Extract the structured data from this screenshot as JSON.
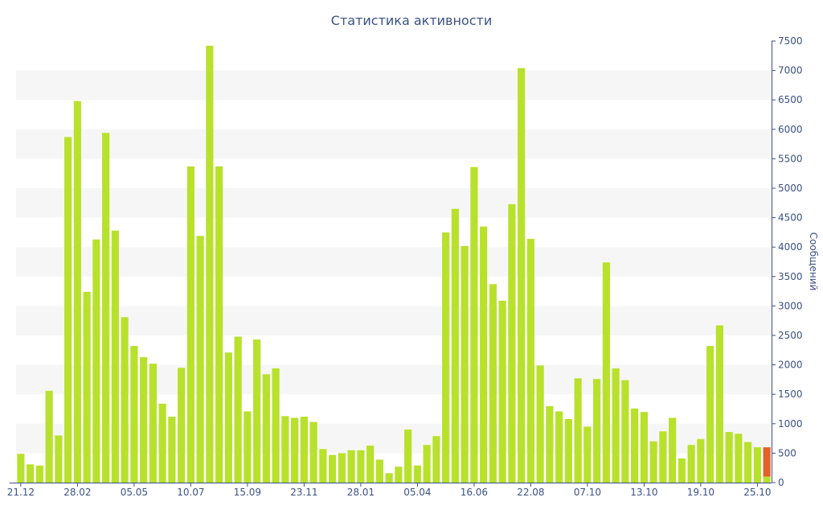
{
  "chart_data": {
    "type": "bar",
    "title": "Статистика активности",
    "xlabel": "",
    "ylabel": "Сообщений",
    "ylim": [
      0,
      7500
    ],
    "y_ticks": [
      0,
      500,
      1000,
      1500,
      2000,
      2500,
      3000,
      3500,
      4000,
      4500,
      5000,
      5500,
      6000,
      6500,
      7000,
      7500
    ],
    "y_axis_position": "right",
    "grid": "alternating horizontal bands",
    "x_tick_labels": [
      {
        "index": 0,
        "label": "21.12"
      },
      {
        "index": 6,
        "label": "28.02"
      },
      {
        "index": 12,
        "label": "05.05"
      },
      {
        "index": 18,
        "label": "10.07"
      },
      {
        "index": 24,
        "label": "15.09"
      },
      {
        "index": 30,
        "label": "23.11"
      },
      {
        "index": 36,
        "label": "28.01"
      },
      {
        "index": 42,
        "label": "05.04"
      },
      {
        "index": 48,
        "label": "16.06"
      },
      {
        "index": 54,
        "label": "22.08"
      },
      {
        "index": 60,
        "label": "07.10"
      },
      {
        "index": 66,
        "label": "13.10"
      },
      {
        "index": 72,
        "label": "19.10"
      },
      {
        "index": 78,
        "label": "25.10"
      }
    ],
    "values": [
      490,
      310,
      290,
      1560,
      800,
      5870,
      6480,
      3240,
      4130,
      5940,
      4280,
      2810,
      2320,
      2130,
      2020,
      1340,
      1120,
      1950,
      5370,
      4190,
      7420,
      5370,
      2210,
      2480,
      1210,
      2430,
      1840,
      1940,
      1130,
      1100,
      1120,
      1030,
      570,
      470,
      500,
      550,
      550,
      630,
      390,
      160,
      270,
      900,
      290,
      640,
      790,
      4250,
      4650,
      4020,
      5360,
      4350,
      3370,
      3090,
      4730,
      7040,
      4140,
      1990,
      1300,
      1210,
      1080,
      1770,
      950,
      1760,
      3740,
      1940,
      1740,
      1260,
      1200,
      700,
      870,
      1100,
      410,
      640,
      740,
      2320,
      2670,
      860,
      830,
      690,
      600,
      100
    ],
    "highlight": {
      "index": 79,
      "value": 600,
      "base_value": 100,
      "color": "#e1622a"
    },
    "colors": {
      "bar": "#b8e12c",
      "highlight": "#e1622a",
      "band": "#f6f6f6",
      "axis": "#3b5186",
      "title": "#3b5186"
    }
  }
}
